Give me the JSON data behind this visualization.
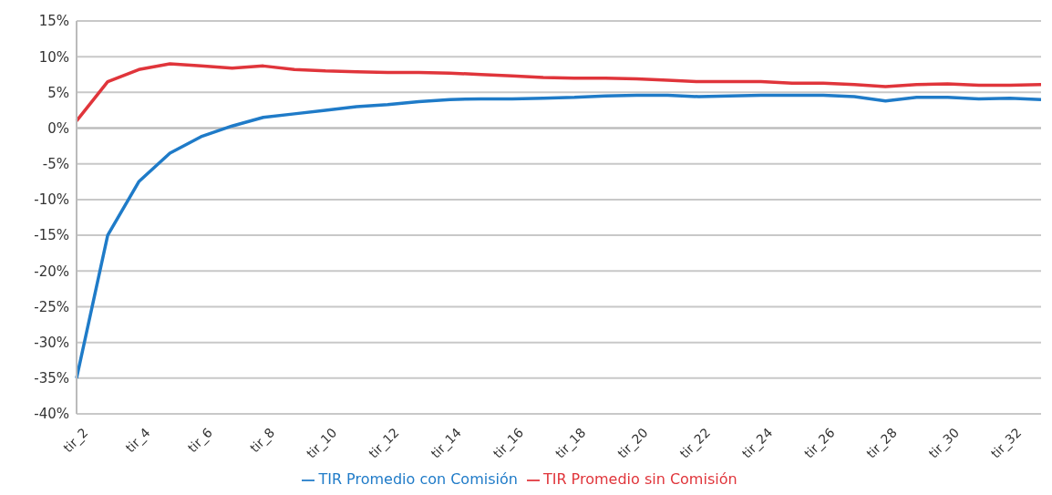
{
  "chart_data": {
    "type": "line",
    "categories": [
      "tir_2",
      null,
      "tir_4",
      null,
      "tir_6",
      null,
      "tir_8",
      null,
      "tir_10",
      null,
      "tir_12",
      null,
      "tir_14",
      null,
      "tir_16",
      null,
      "tir_18",
      null,
      "tir_20",
      null,
      "tir_22",
      null,
      "tir_24",
      null,
      "tir_26",
      null,
      "tir_28",
      null,
      "tir_30",
      null,
      "tir_32",
      null
    ],
    "series": [
      {
        "name": "TIR Promedio con Comisión",
        "color": "#1f7bc8",
        "values": [
          -35,
          -15,
          -7.5,
          -3.5,
          -1.2,
          0.3,
          1.5,
          2,
          2.5,
          3,
          3.3,
          3.7,
          4,
          4.1,
          4.1,
          4.2,
          4.3,
          4.5,
          4.6,
          4.6,
          4.4,
          4.5,
          4.6,
          4.6,
          4.6,
          4.4,
          3.8,
          4.3,
          4.3,
          4.1,
          4.2,
          4
        ]
      },
      {
        "name": "TIR Promedio sin Comisión",
        "color": "#e0353b",
        "values": [
          1,
          6.5,
          8.2,
          9,
          8.7,
          8.4,
          8.7,
          8.2,
          8,
          7.9,
          7.8,
          7.8,
          7.7,
          7.5,
          7.3,
          7.1,
          7,
          7,
          6.9,
          6.7,
          6.5,
          6.5,
          6.5,
          6.3,
          6.3,
          6.1,
          5.8,
          6.1,
          6.2,
          6,
          6,
          6.1
        ]
      }
    ],
    "ylim": [
      -40,
      15
    ],
    "yticks": [
      {
        "value": -40,
        "label": "-40%"
      },
      {
        "value": -35,
        "label": "-35%"
      },
      {
        "value": -30,
        "label": "-30%"
      },
      {
        "value": -25,
        "label": "-25%"
      },
      {
        "value": -20,
        "label": "-20%"
      },
      {
        "value": -15,
        "label": "-15%"
      },
      {
        "value": -10,
        "label": "-10%"
      },
      {
        "value": -5,
        "label": "-5%"
      },
      {
        "value": 0,
        "label": "0%"
      },
      {
        "value": 5,
        "label": "5%"
      },
      {
        "value": 10,
        "label": "10%"
      },
      {
        "value": 15,
        "label": "15%"
      }
    ],
    "grid": "y",
    "legend": "bottom",
    "marker": "none",
    "line_style": "solid"
  }
}
